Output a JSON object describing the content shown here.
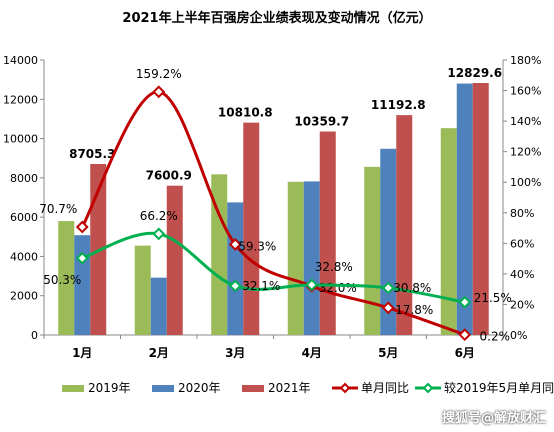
{
  "chart_data": {
    "type": "bar",
    "title": "2021年上半年百强房企业绩表现及变动情况（亿元）",
    "categories": [
      "1月",
      "2月",
      "3月",
      "4月",
      "5月",
      "6月"
    ],
    "ylim": [
      0,
      14000
    ],
    "y2lim": [
      0,
      1.8
    ],
    "yticks": [
      "0",
      "2000",
      "4000",
      "6000",
      "8000",
      "10000",
      "12000",
      "14000"
    ],
    "y2ticks": [
      "0%",
      "20%",
      "40%",
      "60%",
      "80%",
      "100%",
      "120%",
      "140%",
      "160%",
      "180%"
    ],
    "grid": false,
    "legend_position": "bottom",
    "bar_series": [
      {
        "name": "2019年",
        "color": "#9bbb59",
        "values": [
          5800,
          4550,
          8180,
          7800,
          8560,
          10530
        ]
      },
      {
        "name": "2020年",
        "color": "#4f81bd",
        "values": [
          5080,
          2920,
          6750,
          7820,
          9480,
          12800
        ]
      },
      {
        "name": "2021年",
        "color": "#c0504d",
        "values": [
          8705.3,
          7600.9,
          10810.8,
          10359.7,
          11192.8,
          12829.6
        ],
        "labels": [
          "8705.3",
          "7600.9",
          "10810.8",
          "10359.7",
          "11192.8",
          "12829.6"
        ]
      }
    ],
    "line_series": [
      {
        "name": "单月同比",
        "color": "#c00000",
        "axis": "right",
        "values": [
          0.707,
          1.592,
          0.593,
          0.32,
          0.178,
          0.002
        ],
        "labels": [
          "70.7%",
          "159.2%",
          "59.3%",
          "32.0%",
          "17.8%",
          "0.2%"
        ]
      },
      {
        "name": "较2019年5月单月同比",
        "color": "#00b050",
        "axis": "right",
        "values": [
          0.503,
          0.662,
          0.321,
          0.328,
          0.308,
          0.215
        ],
        "labels": [
          "50.3%",
          "66.2%",
          "32.1%",
          "32.8%",
          "30.8%",
          "21.5%"
        ]
      }
    ]
  },
  "watermark": "搜狐号@解放财汇"
}
